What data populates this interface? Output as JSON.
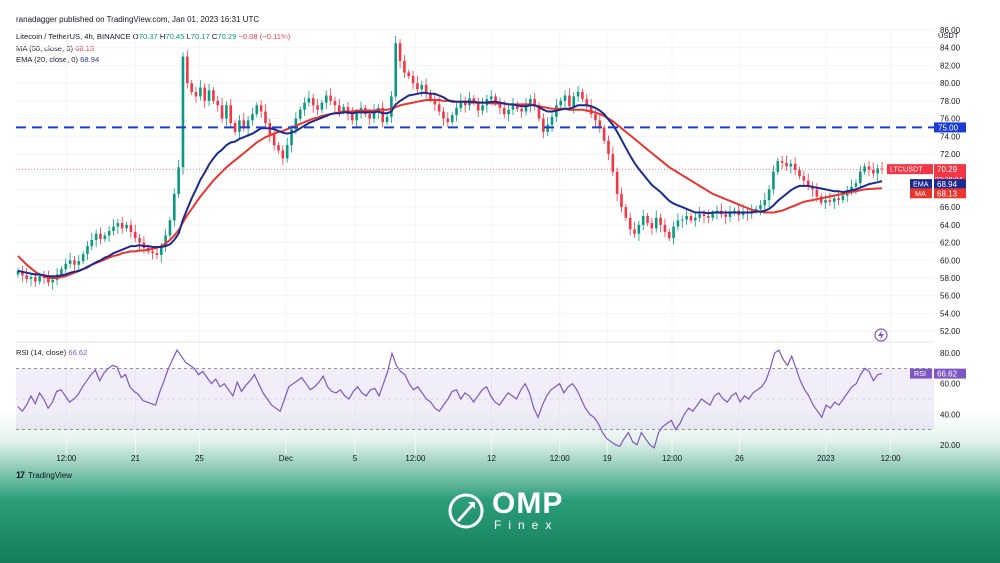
{
  "header": {
    "published": "ranadagger published on TradingView.com, Jan 01, 2023 16:31 UTC",
    "symbol": "Litecoin / TetherUS, 4h, BINANCE",
    "o_label": "O",
    "o": "70.37",
    "h_label": "H",
    "h": "70.45",
    "l_label": "L",
    "l": "70.17",
    "c_label": "C",
    "c": "70.29",
    "change": "−0.08 (−0.11%)",
    "ma_label": "MA (50, close, 0)",
    "ma_value": "68.13",
    "ema_label": "EMA (20, close, 0)",
    "ema_value": "68.94"
  },
  "rsi_legend": {
    "label": "RSI (14, close)",
    "value": "66.62"
  },
  "price_tags": {
    "level": "75.00",
    "ticker": "LTCUSDT",
    "price": "70.29",
    "countdown": "03:28:04",
    "ema_name": "EMA",
    "ema": "68.94",
    "ma_name": "MA",
    "ma": "68.13",
    "rsi_name": "RSI",
    "rsi": "66.62"
  },
  "branding": {
    "tradingview": "TradingView",
    "omp": "OMP",
    "finex": "Finex"
  },
  "colors": {
    "up": "#089981",
    "down": "#f23645",
    "ema": "#1c2a8f",
    "ma": "#e8362f",
    "rsi": "#7e57c2",
    "level": "#1a3cd6"
  },
  "chart_data": [
    {
      "type": "candlestick",
      "y_axis_unit": "USDT",
      "ylim": [
        51,
        86
      ],
      "y_ticks": [
        "52.00",
        "54.00",
        "56.00",
        "58.00",
        "60.00",
        "62.00",
        "64.00",
        "66.00",
        "68.00",
        "70.00",
        "72.00",
        "74.00",
        "76.00",
        "78.00",
        "80.00",
        "82.00",
        "84.00",
        "86.00"
      ],
      "x_tick_labels": [
        "12:00",
        "21",
        "25",
        "Dec",
        "5",
        "12:00",
        "12",
        "12:00",
        "19",
        "12:00",
        "26",
        "2023",
        "12:00"
      ],
      "horizontal_level": 75,
      "close": [
        58.8,
        58.3,
        57.9,
        58.1,
        57.6,
        58.2,
        58.0,
        57.5,
        57.8,
        58.4,
        59.0,
        59.6,
        60.0,
        59.5,
        59.9,
        60.7,
        61.6,
        62.3,
        63.0,
        62.4,
        62.8,
        63.3,
        63.8,
        64.2,
        63.6,
        64.0,
        63.2,
        62.5,
        62.0,
        61.4,
        61.0,
        60.8,
        60.6,
        61.5,
        62.8,
        64.5,
        67.5,
        70.5,
        83.0,
        80.0,
        79.0,
        78.5,
        79.5,
        78.0,
        79.2,
        78.0,
        77.5,
        76.0,
        77.5,
        75.5,
        74.5,
        75.8,
        75.0,
        75.8,
        76.5,
        77.5,
        76.8,
        75.5,
        74.2,
        73.0,
        72.4,
        71.5,
        73.0,
        74.8,
        76.0,
        77.0,
        77.8,
        78.3,
        77.5,
        77.0,
        77.8,
        78.6,
        78.0,
        77.5,
        76.8,
        77.3,
        76.5,
        75.8,
        76.6,
        77.2,
        76.5,
        76.0,
        76.8,
        77.2,
        75.6,
        76.2,
        78.5,
        84.5,
        82.5,
        81.2,
        80.8,
        80.0,
        79.3,
        79.8,
        78.9,
        78.2,
        77.6,
        76.8,
        76.0,
        75.6,
        76.4,
        77.2,
        78.0,
        77.5,
        78.3,
        77.8,
        76.9,
        77.5,
        78.2,
        78.5,
        77.8,
        77.2,
        76.5,
        77.0,
        77.6,
        77.1,
        76.8,
        77.5,
        78.2,
        77.5,
        76.0,
        74.5,
        75.3,
        76.2,
        77.5,
        78.0,
        78.6,
        77.4,
        78.5,
        79.0,
        78.2,
        77.4,
        76.5,
        75.8,
        75.0,
        73.5,
        72.0,
        70.0,
        67.5,
        66.0,
        64.8,
        63.5,
        63.0,
        64.0,
        65.0,
        64.2,
        63.6,
        64.8,
        64.0,
        63.2,
        62.5,
        63.8,
        64.5,
        64.6,
        65.0,
        64.5,
        64.8,
        65.2,
        65.0,
        64.8,
        65.3,
        65.6,
        65.2,
        64.9,
        65.4,
        65.6,
        65.1,
        65.5,
        65.3,
        65.6,
        65.8,
        66.2,
        66.8,
        68.0,
        70.0,
        71.2,
        71.0,
        70.6,
        70.9,
        70.2,
        69.5,
        69.0,
        68.4,
        68.0,
        67.2,
        66.5,
        66.8,
        66.6,
        67.0,
        66.8,
        67.3,
        67.8,
        68.3,
        68.7,
        70.0,
        70.6,
        70.2,
        69.8,
        70.37,
        70.29
      ],
      "ma_50": [
        60.5,
        60.0,
        59.5,
        59.1,
        58.7,
        58.4,
        58.2,
        58.0,
        58.0,
        58.0,
        58.1,
        58.2,
        58.4,
        58.6,
        58.8,
        59.0,
        59.3,
        59.5,
        59.7,
        59.9,
        60.1,
        60.3,
        60.5,
        60.6,
        60.8,
        60.9,
        61.0,
        61.0,
        61.1,
        61.1,
        61.2,
        61.3,
        61.4,
        61.6,
        61.9,
        62.3,
        62.8,
        63.4,
        64.3,
        65.1,
        65.8,
        66.5,
        67.2,
        67.8,
        68.4,
        69.0,
        69.5,
        70.0,
        70.5,
        70.9,
        71.3,
        71.7,
        72.1,
        72.5,
        72.9,
        73.3,
        73.6,
        73.9,
        74.1,
        74.3,
        74.5,
        74.6,
        74.8,
        75.0,
        75.2,
        75.4,
        75.6,
        75.8,
        76.0,
        76.1,
        76.3,
        76.4,
        76.5,
        76.6,
        76.7,
        76.8,
        76.8,
        76.8,
        76.9,
        76.9,
        76.9,
        76.9,
        76.9,
        77.0,
        77.0,
        77.0,
        77.1,
        77.3,
        77.5,
        77.6,
        77.7,
        77.8,
        77.9,
        78.0,
        78.1,
        78.1,
        78.1,
        78.1,
        78.0,
        78.0,
        78.0,
        77.9,
        77.9,
        77.9,
        77.8,
        77.8,
        77.8,
        77.8,
        77.8,
        77.7,
        77.7,
        77.7,
        77.7,
        77.6,
        77.6,
        77.6,
        77.6,
        77.6,
        77.6,
        77.5,
        77.4,
        77.3,
        77.2,
        77.1,
        77.1,
        77.1,
        77.1,
        77.0,
        77.0,
        77.0,
        77.0,
        76.9,
        76.8,
        76.7,
        76.5,
        76.3,
        76.0,
        75.7,
        75.3,
        74.9,
        74.5,
        74.1,
        73.7,
        73.3,
        72.9,
        72.5,
        72.1,
        71.7,
        71.3,
        70.9,
        70.5,
        70.2,
        69.9,
        69.6,
        69.3,
        69.0,
        68.7,
        68.4,
        68.1,
        67.8,
        67.5,
        67.3,
        67.1,
        66.9,
        66.7,
        66.5,
        66.3,
        66.1,
        65.9,
        65.7,
        65.6,
        65.5,
        65.4,
        65.4,
        65.4,
        65.5,
        65.6,
        65.8,
        66.0,
        66.2,
        66.4,
        66.6,
        66.7,
        66.8,
        66.9,
        67.0,
        67.1,
        67.2,
        67.3,
        67.4,
        67.5,
        67.6,
        67.7,
        67.8,
        67.9,
        68.0,
        68.05,
        68.08,
        68.1,
        68.13
      ],
      "ema_20": [
        58.8,
        58.7,
        58.6,
        58.5,
        58.4,
        58.4,
        58.3,
        58.2,
        58.2,
        58.2,
        58.3,
        58.4,
        58.6,
        58.7,
        58.8,
        59.0,
        59.2,
        59.5,
        59.8,
        60.0,
        60.3,
        60.5,
        60.8,
        61.0,
        61.2,
        61.4,
        61.6,
        61.6,
        61.7,
        61.6,
        61.6,
        61.5,
        61.5,
        61.5,
        61.6,
        61.8,
        62.3,
        63.0,
        64.6,
        65.8,
        67.0,
        68.0,
        69.1,
        69.9,
        70.8,
        71.5,
        72.1,
        72.5,
        73.0,
        73.3,
        73.4,
        73.7,
        73.9,
        74.1,
        74.3,
        74.6,
        74.9,
        74.9,
        74.9,
        74.8,
        74.6,
        74.4,
        74.3,
        74.4,
        74.6,
        74.9,
        75.2,
        75.5,
        75.7,
        75.9,
        76.1,
        76.3,
        76.5,
        76.6,
        76.6,
        76.7,
        76.7,
        76.6,
        76.7,
        76.7,
        76.7,
        76.7,
        76.7,
        76.8,
        76.6,
        76.6,
        76.8,
        77.6,
        78.0,
        78.3,
        78.6,
        78.7,
        78.8,
        78.9,
        78.9,
        78.8,
        78.8,
        78.6,
        78.4,
        78.1,
        77.9,
        77.9,
        77.9,
        77.9,
        77.9,
        77.9,
        77.8,
        77.8,
        77.8,
        77.9,
        77.9,
        77.8,
        77.7,
        77.6,
        77.6,
        77.5,
        77.4,
        77.4,
        77.5,
        77.5,
        77.3,
        77.0,
        76.8,
        76.8,
        76.9,
        77.0,
        77.1,
        77.1,
        77.3,
        77.5,
        77.5,
        77.5,
        77.4,
        77.2,
        76.9,
        76.5,
        75.9,
        75.3,
        74.5,
        73.6,
        72.7,
        71.8,
        71.0,
        70.3,
        69.7,
        69.1,
        68.5,
        68.1,
        67.7,
        67.2,
        66.7,
        66.4,
        66.2,
        66.0,
        65.8,
        65.6,
        65.4,
        65.4,
        65.4,
        65.3,
        65.4,
        65.4,
        65.4,
        65.4,
        65.4,
        65.4,
        65.4,
        65.4,
        65.4,
        65.4,
        65.5,
        65.5,
        65.6,
        65.8,
        66.2,
        66.7,
        67.1,
        67.5,
        67.9,
        68.2,
        68.4,
        68.4,
        68.4,
        68.3,
        68.2,
        68.1,
        68.0,
        67.9,
        67.8,
        67.8,
        67.7,
        67.8,
        67.9,
        68.0,
        68.2,
        68.4,
        68.6,
        68.7,
        68.8,
        68.94
      ]
    },
    {
      "type": "line",
      "name": "RSI (14, close)",
      "ylim": [
        14,
        86
      ],
      "y_ticks": [
        "20.00",
        "40.00",
        "60.00",
        "80.00"
      ],
      "band": [
        30,
        70
      ],
      "midline": 50,
      "values": [
        45,
        42,
        46,
        52,
        47,
        54,
        50,
        44,
        48,
        55,
        56,
        52,
        48,
        50,
        53,
        58,
        62,
        66,
        69,
        62,
        67,
        70,
        72,
        71,
        64,
        66,
        58,
        55,
        53,
        49,
        48,
        47,
        46,
        55,
        62,
        70,
        76,
        82,
        78,
        74,
        72,
        70,
        66,
        68,
        64,
        60,
        63,
        58,
        60,
        56,
        52,
        61,
        55,
        59,
        62,
        66,
        60,
        54,
        50,
        46,
        44,
        42,
        50,
        58,
        60,
        62,
        64,
        60,
        56,
        58,
        61,
        65,
        58,
        55,
        54,
        56,
        52,
        50,
        55,
        58,
        54,
        52,
        56,
        57,
        52,
        60,
        68,
        80,
        72,
        68,
        66,
        60,
        56,
        58,
        54,
        50,
        48,
        44,
        42,
        46,
        50,
        55,
        56,
        50,
        54,
        52,
        48,
        52,
        56,
        58,
        52,
        48,
        46,
        50,
        54,
        52,
        50,
        56,
        60,
        54,
        44,
        38,
        46,
        52,
        56,
        58,
        60,
        54,
        58,
        60,
        56,
        50,
        44,
        40,
        38,
        34,
        28,
        24,
        22,
        20,
        19,
        24,
        28,
        22,
        20,
        28,
        24,
        20,
        18,
        28,
        32,
        34,
        36,
        30,
        34,
        40,
        44,
        42,
        46,
        50,
        48,
        46,
        52,
        54,
        50,
        48,
        52,
        54,
        48,
        52,
        50,
        54,
        56,
        58,
        62,
        70,
        80,
        82,
        76,
        72,
        78,
        70,
        62,
        56,
        52,
        46,
        42,
        38,
        46,
        44,
        48,
        46,
        50,
        54,
        58,
        60,
        66,
        70,
        68,
        62,
        66,
        66.62
      ]
    }
  ]
}
